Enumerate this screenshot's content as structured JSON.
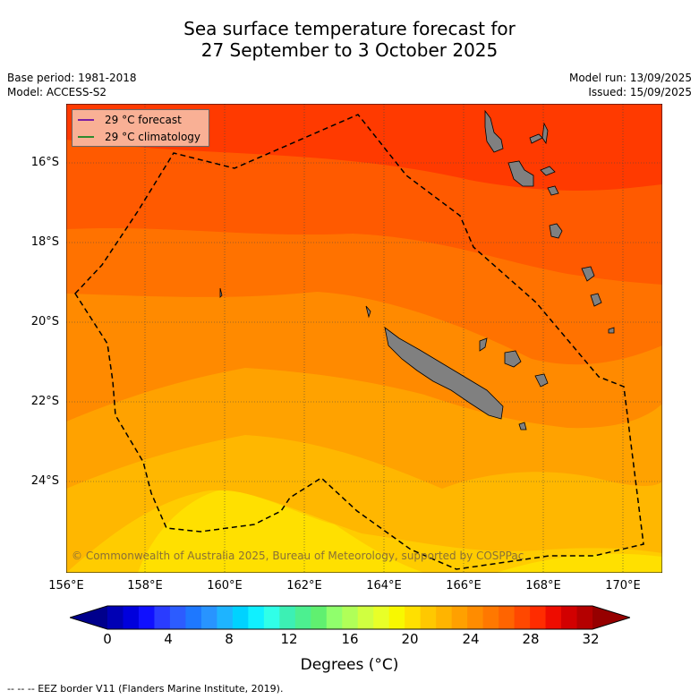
{
  "title": {
    "line1": "Sea surface temperature forecast for",
    "line2": "27 September to 3 October 2025"
  },
  "meta": {
    "base_period": "Base period: 1981-2018",
    "model": "Model: ACCESS-S2",
    "model_run": "Model run: 13/09/2025",
    "issued": "Issued: 15/09/2025"
  },
  "map": {
    "lat_labels": [
      "16°S",
      "18°S",
      "20°S",
      "22°S",
      "24°S"
    ],
    "lon_labels": [
      "156°E",
      "158°E",
      "160°E",
      "162°E",
      "164°E",
      "166°E",
      "168°E",
      "170°E"
    ],
    "copyright": "© Commonwealth of Australia 2025, Bureau of Meteorology, supported by COSPPac",
    "legend": {
      "forecast": "29 °C  forecast",
      "climatology": "29 °C  climatology",
      "forecast_color": "#7b1fa2",
      "climatology_color": "#2e8b2e"
    },
    "land_color": "#808080",
    "eez_style": "dashed black"
  },
  "colorbar": {
    "tick_labels": [
      "0",
      "4",
      "8",
      "12",
      "16",
      "20",
      "24",
      "28",
      "32"
    ],
    "title": "Degrees (°C)",
    "colors": [
      "#00008c",
      "#0000b4",
      "#0000dc",
      "#1010ff",
      "#2a3cff",
      "#2c5cff",
      "#1e78ff",
      "#2894ff",
      "#1eb4ff",
      "#00d2ff",
      "#10f0ff",
      "#30ffe8",
      "#3cf0b4",
      "#4cf090",
      "#60f070",
      "#90ff6c",
      "#b0ff58",
      "#d0ff40",
      "#e8ff28",
      "#f8f800",
      "#ffe000",
      "#ffc800",
      "#ffb400",
      "#ffa000",
      "#ff8c00",
      "#ff7800",
      "#ff6400",
      "#ff4800",
      "#ff2c00",
      "#ee0c00",
      "#d20000",
      "#b40000",
      "#960000"
    ]
  },
  "footer": "--  --  -- EEZ border V11 (Flanders Marine Institute, 2019)."
}
